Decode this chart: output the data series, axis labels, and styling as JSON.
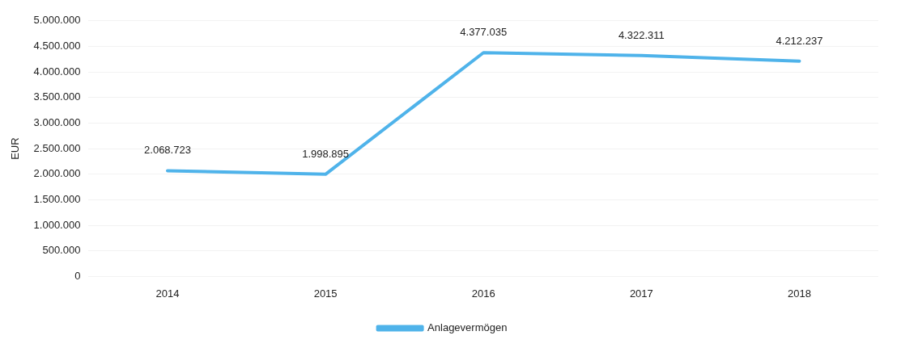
{
  "chart_data": {
    "type": "line",
    "ylabel": "EUR",
    "categories": [
      "2014",
      "2015",
      "2016",
      "2017",
      "2018"
    ],
    "series": [
      {
        "name": "Anlagevermögen",
        "color": "#4fb3ea",
        "values": [
          2068723,
          1998895,
          4377035,
          4322311,
          4212237
        ],
        "value_labels": [
          "2.068.723",
          "1.998.895",
          "4.377.035",
          "4.322.311",
          "4.212.237"
        ]
      }
    ],
    "ylim": [
      0,
      5000000
    ],
    "yticks": [
      0,
      {
        "value": 500000,
        "label": "500.000"
      },
      {
        "value": 1000000,
        "label": "1.000.000"
      },
      {
        "value": 1500000,
        "label": "1.500.000"
      },
      {
        "value": 2000000,
        "label": "2.000.000"
      },
      {
        "value": 2500000,
        "label": "2.500.000"
      },
      {
        "value": 3000000,
        "label": "3.000.000"
      },
      {
        "value": 3500000,
        "label": "3.500.000"
      },
      {
        "value": 4000000,
        "label": "4.000.000"
      },
      {
        "value": 4500000,
        "label": "4.500.000"
      },
      {
        "value": 5000000,
        "label": "5.000.000"
      }
    ],
    "grid": "y",
    "legend": "bottom",
    "marker": "none",
    "line_style": "solid"
  }
}
